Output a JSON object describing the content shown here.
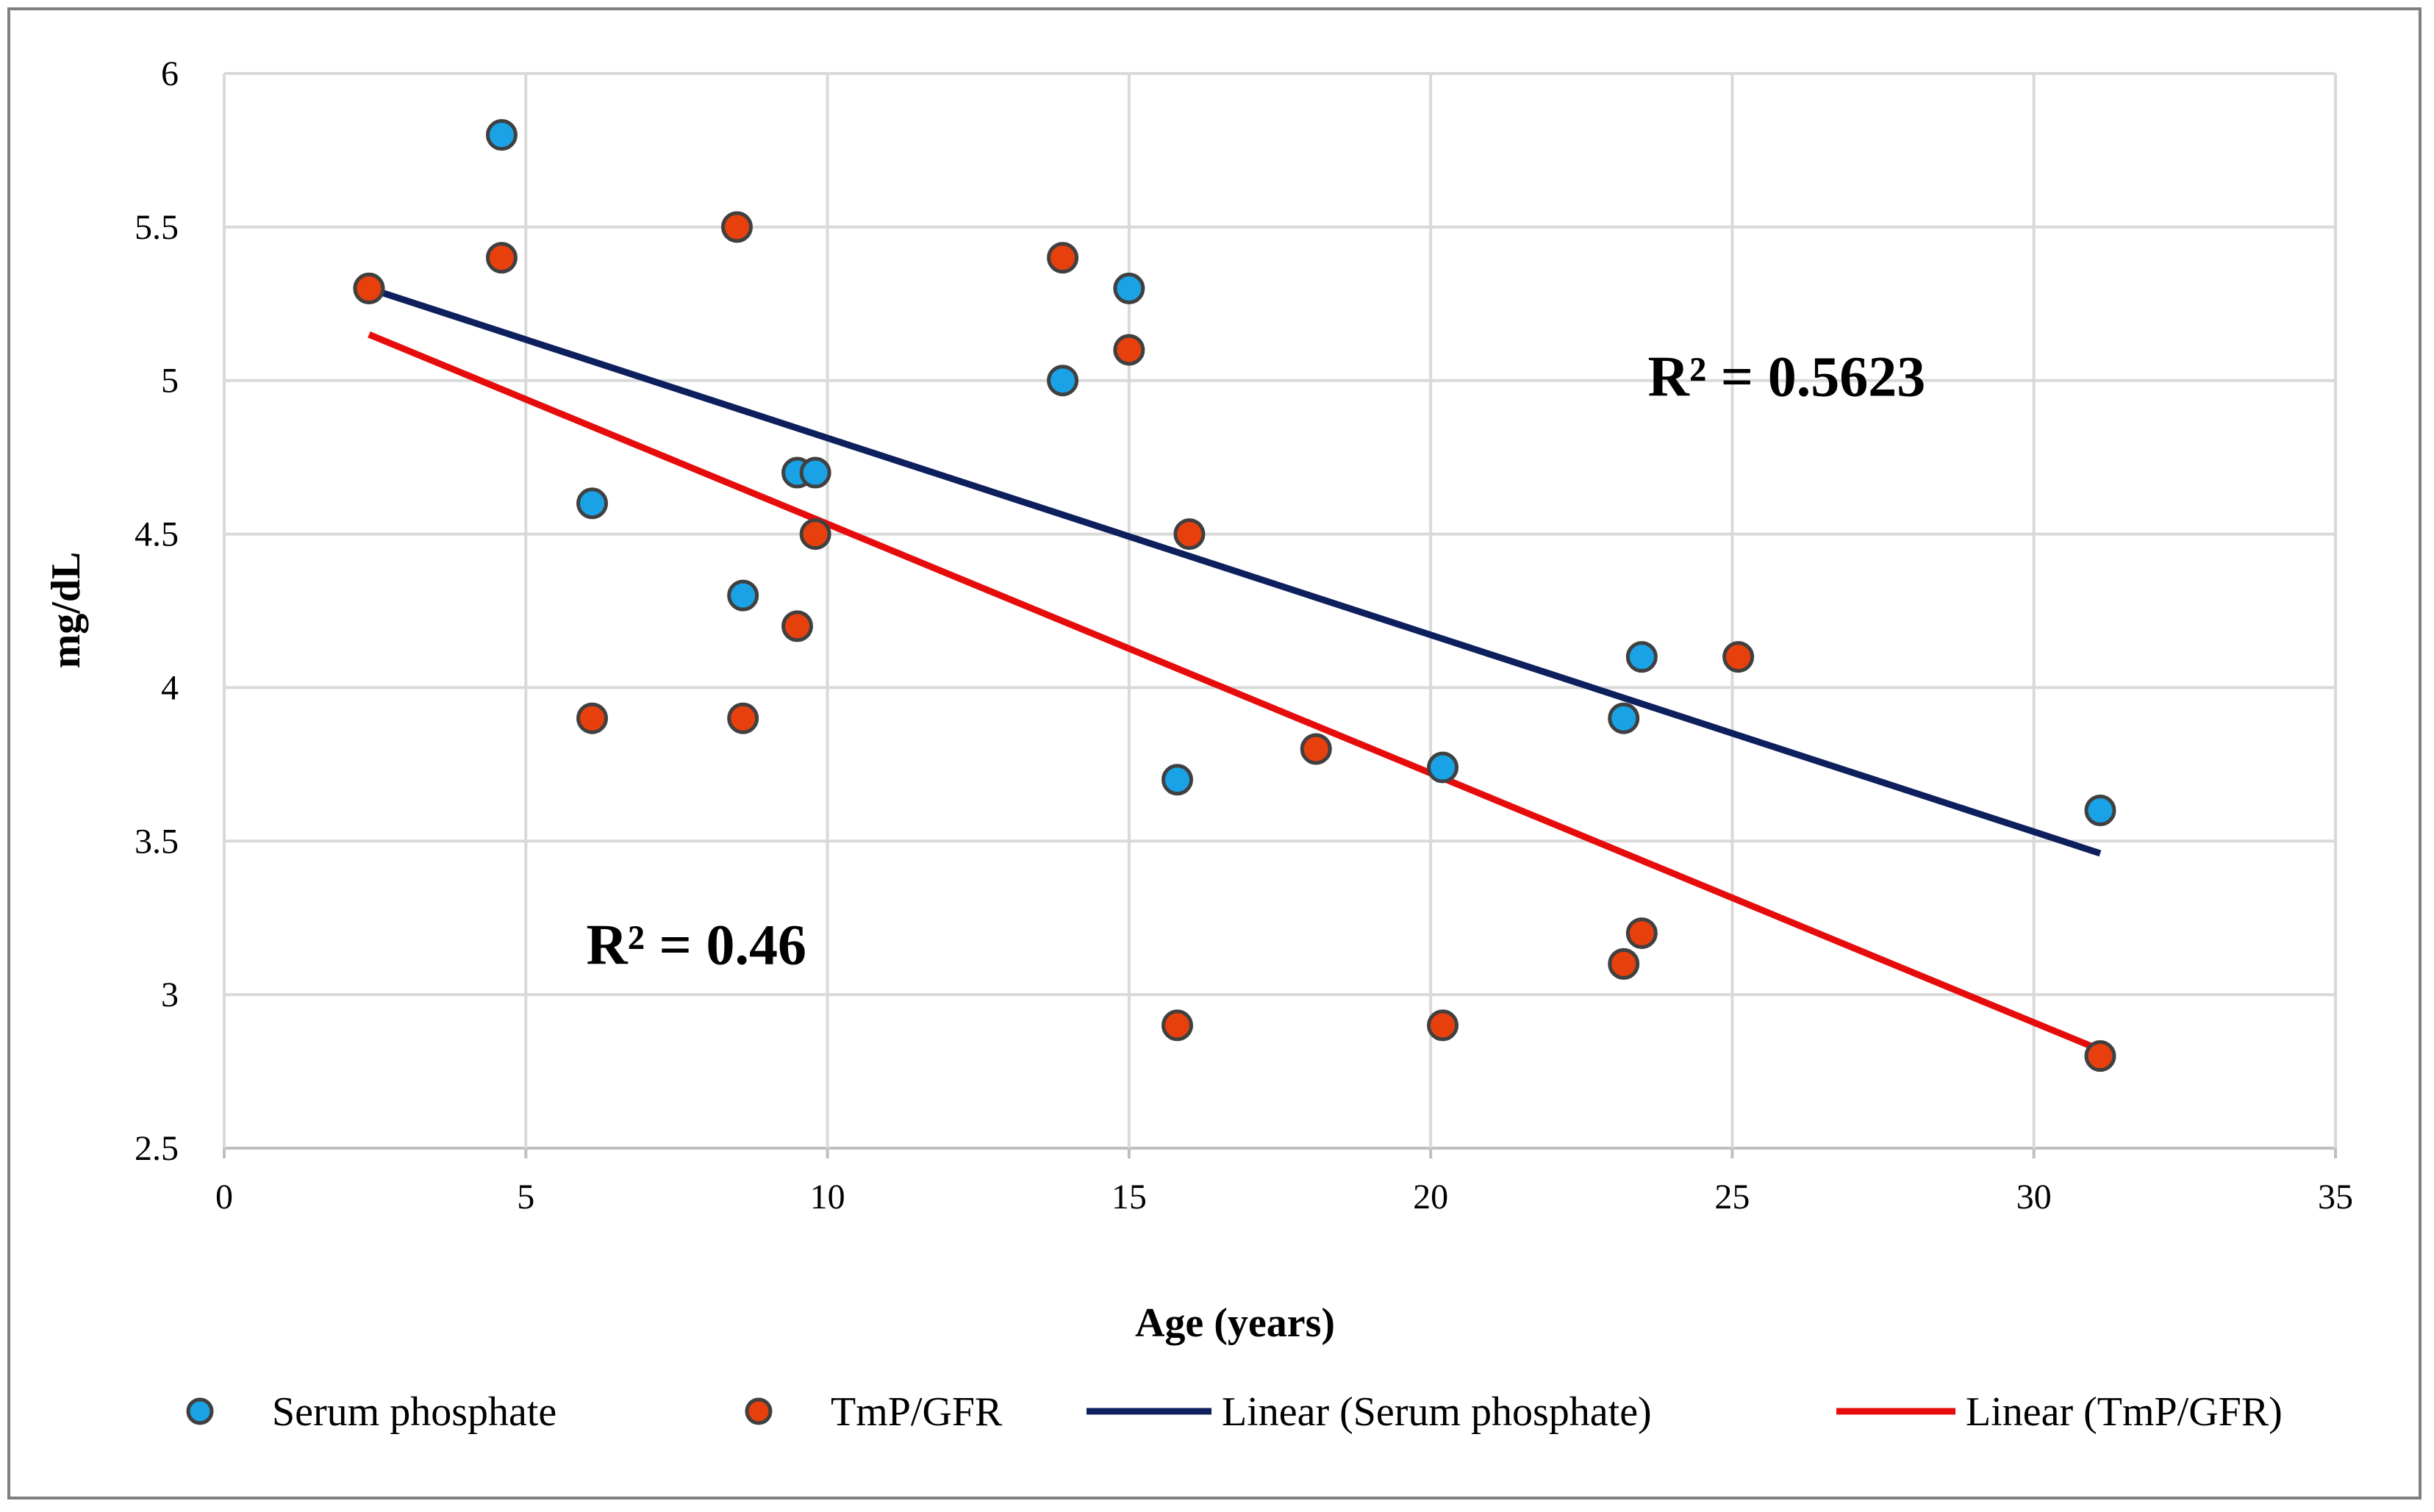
{
  "chart_data": {
    "type": "scatter",
    "title": "",
    "xlabel": "Age (years)",
    "ylabel": "mg/dL",
    "xlim": [
      0,
      35
    ],
    "ylim": [
      2.5,
      6
    ],
    "x_ticks": [
      0,
      5,
      10,
      15,
      20,
      25,
      30,
      35
    ],
    "y_ticks": [
      2.5,
      3,
      3.5,
      4,
      4.5,
      5,
      5.5,
      6
    ],
    "x_tick_labels": [
      "0",
      "5",
      "10",
      "15",
      "20",
      "25",
      "30",
      "35"
    ],
    "y_tick_labels": [
      "2.5",
      "3",
      "3.5",
      "4",
      "4.5",
      "5",
      "5.5",
      "6"
    ],
    "grid": true,
    "legend_position": "bottom",
    "series": [
      {
        "name": "Serum phosphate",
        "color": "#1aa2e6",
        "points": [
          {
            "x": 2.4,
            "y": 5.3
          },
          {
            "x": 4.6,
            "y": 5.8
          },
          {
            "x": 6.1,
            "y": 4.6
          },
          {
            "x": 8.6,
            "y": 4.3
          },
          {
            "x": 9.5,
            "y": 4.7
          },
          {
            "x": 9.8,
            "y": 4.7
          },
          {
            "x": 13.9,
            "y": 5.0
          },
          {
            "x": 15.0,
            "y": 5.3
          },
          {
            "x": 15.8,
            "y": 3.7
          },
          {
            "x": 20.2,
            "y": 3.74
          },
          {
            "x": 23.2,
            "y": 3.9
          },
          {
            "x": 23.5,
            "y": 4.1
          },
          {
            "x": 31.1,
            "y": 3.6
          }
        ]
      },
      {
        "name": "TmP/GFR",
        "color": "#e8400c",
        "points": [
          {
            "x": 2.4,
            "y": 5.3
          },
          {
            "x": 4.6,
            "y": 5.4
          },
          {
            "x": 6.1,
            "y": 3.9
          },
          {
            "x": 8.5,
            "y": 5.5
          },
          {
            "x": 8.6,
            "y": 3.9
          },
          {
            "x": 9.5,
            "y": 4.2
          },
          {
            "x": 9.8,
            "y": 4.5
          },
          {
            "x": 13.9,
            "y": 5.4
          },
          {
            "x": 15.0,
            "y": 5.1
          },
          {
            "x": 15.8,
            "y": 2.9
          },
          {
            "x": 16.0,
            "y": 4.5
          },
          {
            "x": 18.1,
            "y": 3.8
          },
          {
            "x": 20.2,
            "y": 2.9
          },
          {
            "x": 23.2,
            "y": 3.1
          },
          {
            "x": 23.5,
            "y": 3.2
          },
          {
            "x": 25.1,
            "y": 4.1
          },
          {
            "x": 31.1,
            "y": 2.8
          }
        ]
      }
    ],
    "trendlines": [
      {
        "name": "Linear (Serum phosphate)",
        "color": "#0d1f5c",
        "from": {
          "x": 2.4,
          "y": 5.3
        },
        "to": {
          "x": 31.1,
          "y": 3.46
        },
        "r2_label": "R² = 0.5623",
        "label_at": {
          "x": 23.6,
          "y": 4.95
        }
      },
      {
        "name": "Linear (TmP/GFR)",
        "color": "#e60c0c",
        "from": {
          "x": 2.4,
          "y": 5.15
        },
        "to": {
          "x": 31.1,
          "y": 2.82
        },
        "r2_label": "R² = 0.46",
        "label_at": {
          "x": 6.0,
          "y": 3.1
        }
      }
    ]
  },
  "legend": {
    "items": [
      {
        "label": "Serum phosphate",
        "kind": "marker",
        "color": "#1aa2e6"
      },
      {
        "label": "TmP/GFR",
        "kind": "marker",
        "color": "#e8400c"
      },
      {
        "label": "Linear (Serum phosphate)",
        "kind": "line",
        "color": "#0d1f5c"
      },
      {
        "label": "Linear (TmP/GFR)",
        "kind": "line",
        "color": "#e60c0c"
      }
    ]
  },
  "colors": {
    "grid": "#d9d9d9",
    "axis": "#bfbfbf",
    "frame": "#7f7f7f",
    "marker_stroke": "#404040"
  }
}
